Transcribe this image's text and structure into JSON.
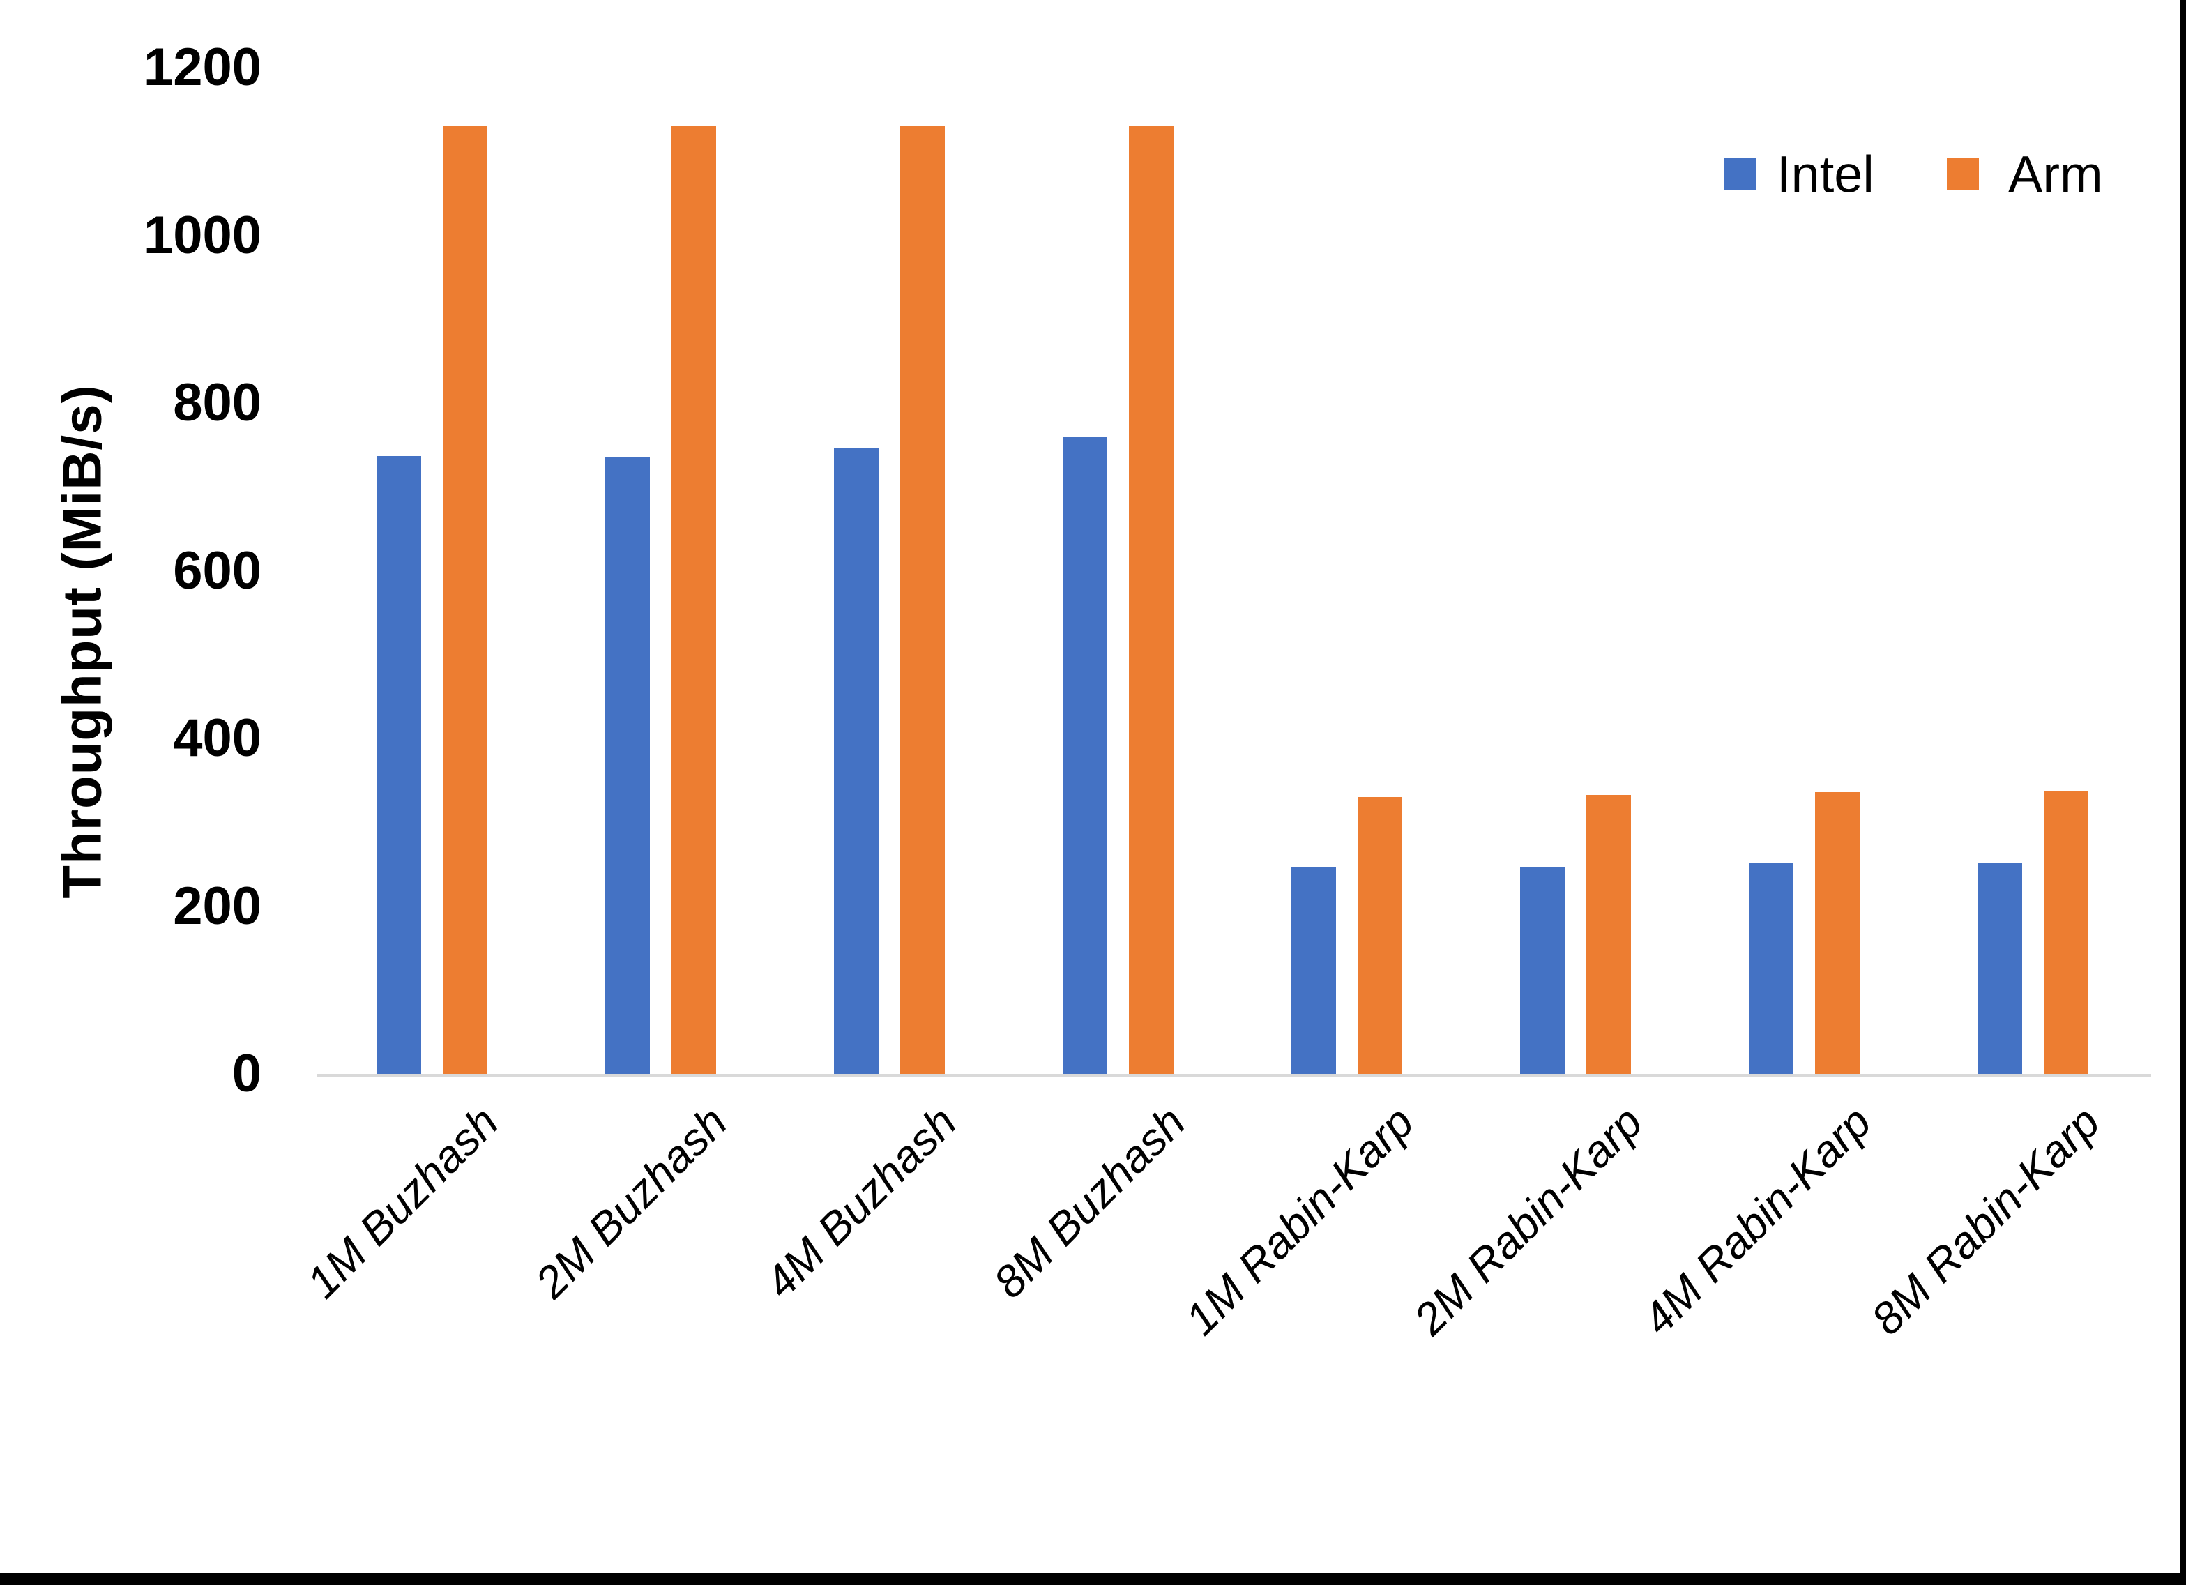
{
  "chart_data": {
    "type": "bar",
    "title": "",
    "categories": [
      "1M Buzhash",
      "2M Buzhash",
      "4M Buzhash",
      "8M Buzhash",
      "1M Rabin-Karp",
      "2M Rabin-Karp",
      "4M Rabin-Karp",
      "8M Rabin-Karp"
    ],
    "series": [
      {
        "name": "Intel",
        "color": "#4472C4",
        "values": [
          737,
          736,
          746,
          760,
          247,
          246,
          251,
          252
        ]
      },
      {
        "name": "Arm",
        "color": "#ED7D31",
        "values": [
          1130,
          1130,
          1130,
          1130,
          330,
          333,
          336,
          338
        ]
      }
    ],
    "xlabel": "",
    "ylabel": "Throughput (MiB/s)",
    "ylim": [
      0,
      1200
    ],
    "yticks": [
      0,
      200,
      400,
      600,
      800,
      1000,
      1200
    ],
    "grid": false,
    "legend_position": "top-right"
  },
  "colors": {
    "axis_line": "#d9d9d9",
    "text": "#000000",
    "page_border": "#000000",
    "background": "#ffffff"
  }
}
